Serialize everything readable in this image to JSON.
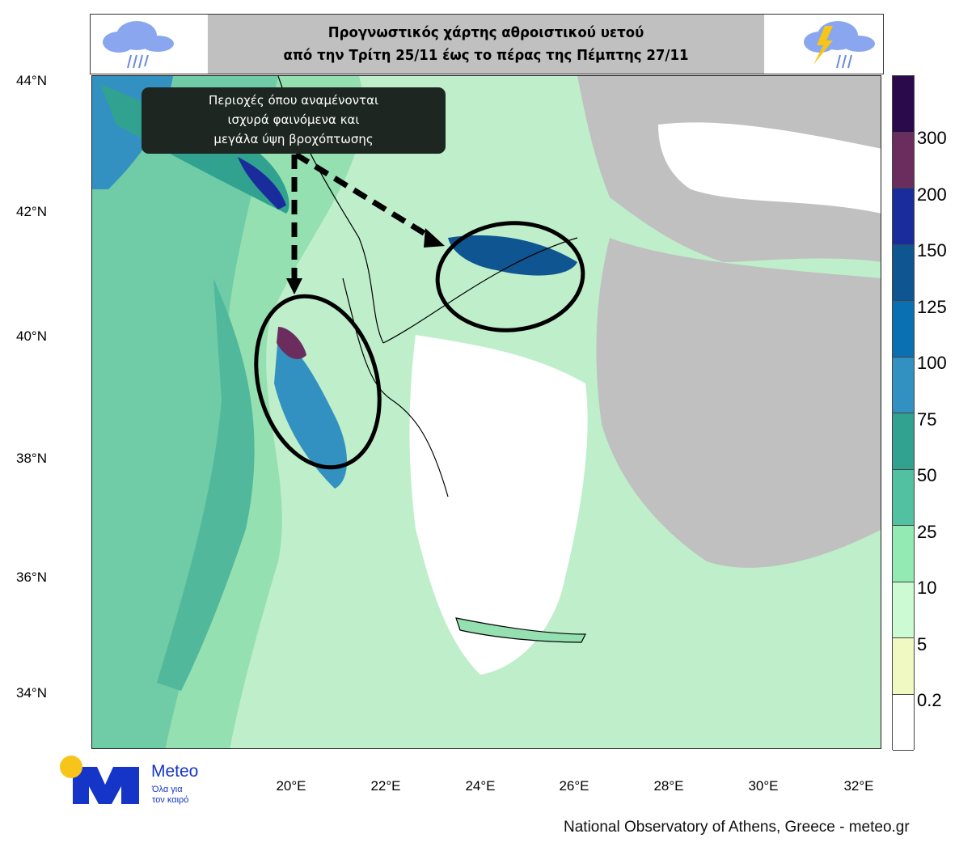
{
  "header": {
    "title_line1": "Προγνωστικός χάρτης αθροιστικού υετού",
    "title_line2": "από την Τρίτη 25/11 έως το πέρας της Πέμπτης 27/11",
    "left_icon": "rain-cloud-icon",
    "right_icon": "thunderstorm-cloud-icon"
  },
  "annotation": {
    "line1": "Περιοχές όπου αναμένονται",
    "line2": "ισχυρά φαινόμενα και",
    "line3": "μεγάλα ύψη βροχόπτωσης"
  },
  "axes": {
    "lat_labels": [
      "44°N",
      "42°N",
      "40°N",
      "38°N",
      "36°N",
      "34°N"
    ],
    "lon_labels": [
      "20°E",
      "22°E",
      "24°E",
      "26°E",
      "28°E",
      "30°E",
      "32°E"
    ]
  },
  "colorbar": {
    "labels": [
      "300",
      "200",
      "150",
      "125",
      "100",
      "75",
      "50",
      "25",
      "10",
      "5",
      "0.2"
    ],
    "colors": [
      "#2b0a4c",
      "#6b2d5e",
      "#1a2c9c",
      "#0f5592",
      "#0a70b2",
      "#3391c1",
      "#31a28f",
      "#52c1a2",
      "#94eab3",
      "#cbfad3",
      "#f1f9c2",
      "#ffffff"
    ]
  },
  "logo": {
    "brand": "Meteo",
    "tagline_line1": "Όλα για",
    "tagline_line2": "τον καιρό",
    "color": "#1535c8",
    "sun_color": "#f7c51a"
  },
  "credit": "National Observatory of Athens, Greece - meteo.gr"
}
